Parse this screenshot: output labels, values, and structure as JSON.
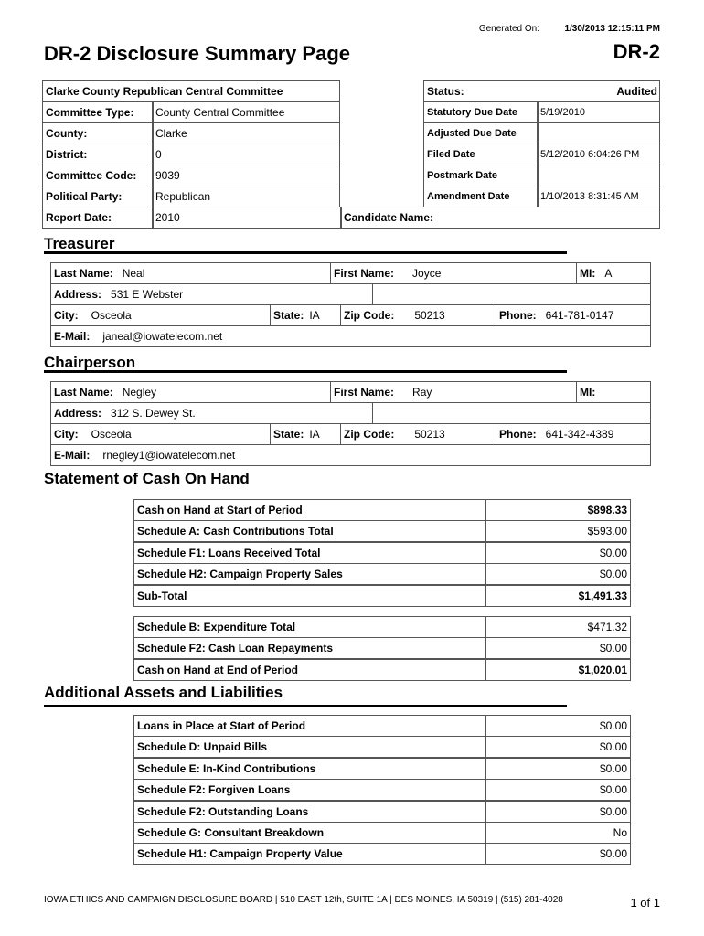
{
  "header": {
    "generated_label": "Generated On:",
    "generated_value": "1/30/2013 12:15:11 PM",
    "title": "DR-2 Disclosure Summary Page",
    "form_code": "DR-2"
  },
  "committee": {
    "name": "Clarke County Republican Central Committee",
    "fields": [
      {
        "label": "Committee Type:",
        "value": "County Central Committee"
      },
      {
        "label": "County:",
        "value": "Clarke"
      },
      {
        "label": "District:",
        "value": "0"
      },
      {
        "label": "Committee Code:",
        "value": "9039"
      },
      {
        "label": "Political Party:",
        "value": "Republican"
      }
    ],
    "report_date_label": "Report Date:",
    "report_date": "2010",
    "candidate_label": "Candidate Name:",
    "candidate": ""
  },
  "status": {
    "label": "Status:",
    "value": "Audited",
    "dates": [
      {
        "label": "Statutory Due Date",
        "value": "5/19/2010"
      },
      {
        "label": "Adjusted Due Date",
        "value": ""
      },
      {
        "label": "Filed Date",
        "value": "5/12/2010 6:04:26 PM"
      },
      {
        "label": "Postmark Date",
        "value": ""
      },
      {
        "label": "Amendment Date",
        "value": "1/10/2013 8:31:45 AM"
      }
    ]
  },
  "labels": {
    "last": "Last Name:",
    "first": "First Name:",
    "mi": "MI:",
    "address": "Address:",
    "city": "City:",
    "state": "State:",
    "zip": "Zip Code:",
    "phone": "Phone:",
    "email": "E-Mail:"
  },
  "treasurer": {
    "heading": "Treasurer",
    "last": "Neal",
    "first": "Joyce",
    "mi": "A",
    "address": "531 E Webster",
    "city": "Osceola",
    "state": "IA",
    "zip": "50213",
    "phone": "641-781-0147",
    "email": "janeal@iowatelecom.net"
  },
  "chairperson": {
    "heading": "Chairperson",
    "last": "Negley",
    "first": "Ray",
    "mi": "",
    "address": "312 S.  Dewey St.",
    "city": "Osceola",
    "state": "IA",
    "zip": "50213",
    "phone": "641-342-4389",
    "email": "rnegley1@iowatelecom.net"
  },
  "cash": {
    "heading": "Statement of Cash On Hand",
    "rows": [
      {
        "label": "Cash on Hand at Start of Period",
        "value": "$898.33",
        "bold": true
      },
      {
        "label": "Schedule A: Cash Contributions Total",
        "value": "$593.00"
      },
      {
        "label": "Schedule F1: Loans Received Total",
        "value": "$0.00"
      },
      {
        "label": "Schedule H2: Campaign Property Sales",
        "value": "$0.00"
      },
      {
        "label": "Sub-Total",
        "value": "$1,491.33",
        "bold": true
      }
    ],
    "rows2": [
      {
        "label": "Schedule B: Expenditure Total",
        "value": "$471.32"
      },
      {
        "label": "Schedule F2: Cash Loan Repayments",
        "value": "$0.00"
      },
      {
        "label": "Cash on Hand at End of Period",
        "value": "$1,020.01",
        "bold": true
      }
    ]
  },
  "assets": {
    "heading": "Additional Assets and Liabilities",
    "rows": [
      {
        "label": "Loans in Place at Start of Period",
        "value": "$0.00"
      },
      {
        "label": "Schedule D: Unpaid Bills",
        "value": "$0.00"
      },
      {
        "label": "Schedule E: In-Kind Contributions",
        "value": "$0.00"
      },
      {
        "label": "Schedule F2: Forgiven Loans",
        "value": "$0.00"
      },
      {
        "label": "Schedule F2: Outstanding Loans",
        "value": "$0.00"
      },
      {
        "label": "Schedule G: Consultant Breakdown",
        "value": "No"
      },
      {
        "label": "Schedule H1: Campaign Property Value",
        "value": "$0.00"
      }
    ]
  },
  "footer": {
    "address": "IOWA ETHICS AND CAMPAIGN DISCLOSURE BOARD | 510 EAST 12th, SUITE 1A | DES MOINES, IA 50319 | (515) 281-4028",
    "page": "1 of 1"
  }
}
